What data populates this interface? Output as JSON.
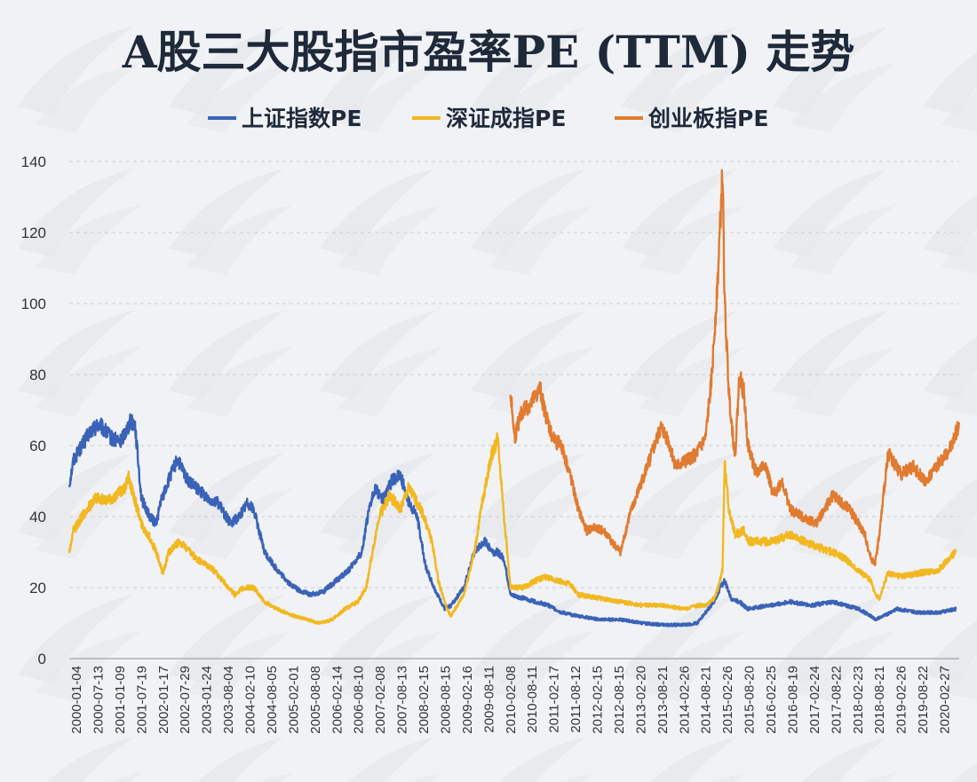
{
  "chart_data": {
    "type": "line",
    "title": "A股三大股指市盈率PE (TTM) 走势",
    "xlabel": "",
    "ylabel": "",
    "ylim": [
      0,
      140
    ],
    "y_ticks": [
      0,
      20,
      40,
      60,
      80,
      100,
      120,
      140
    ],
    "grid": true,
    "legend_position": "top",
    "x_tick_labels": [
      "2000-01-04",
      "2000-07-13",
      "2001-01-09",
      "2001-07-19",
      "2002-01-17",
      "2002-07-29",
      "2003-01-24",
      "2003-08-04",
      "2004-02-10",
      "2004-08-05",
      "2005-02-01",
      "2005-08-08",
      "2006-02-14",
      "2006-08-10",
      "2007-02-08",
      "2007-08-13",
      "2008-02-15",
      "2008-08-15",
      "2009-02-16",
      "2009-08-11",
      "2010-02-08",
      "2010-08-11",
      "2011-02-17",
      "2011-08-12",
      "2012-02-15",
      "2012-08-15",
      "2013-02-20",
      "2013-08-21",
      "2014-02-26",
      "2014-08-21",
      "2015-02-26",
      "2015-08-20",
      "2016-02-25",
      "2016-08-19",
      "2017-02-24",
      "2017-08-22",
      "2018-02-23",
      "2018-08-21",
      "2019-02-26",
      "2019-08-22",
      "2020-02-27"
    ],
    "series": [
      {
        "name": "上证指数PE",
        "color": "#3a63b8",
        "x": [
          2000.0,
          2000.1,
          2000.3,
          2000.5,
          2000.7,
          2001.0,
          2001.2,
          2001.45,
          2001.55,
          2001.7,
          2001.9,
          2002.05,
          2002.15,
          2002.4,
          2002.55,
          2002.8,
          2003.0,
          2003.3,
          2003.5,
          2003.8,
          2004.0,
          2004.2,
          2004.35,
          2004.6,
          2004.9,
          2005.2,
          2005.45,
          2005.7,
          2006.0,
          2006.3,
          2006.6,
          2006.9,
          2007.0,
          2007.2,
          2007.4,
          2007.6,
          2007.8,
          2008.0,
          2008.2,
          2008.4,
          2008.6,
          2008.85,
          2009.0,
          2009.3,
          2009.55,
          2009.8,
          2010.0,
          2010.1,
          2010.25,
          2010.4,
          2010.7,
          2011.0,
          2011.3,
          2011.6,
          2012.0,
          2012.5,
          2013.0,
          2013.5,
          2014.0,
          2014.5,
          2014.8,
          2015.0,
          2015.2,
          2015.35,
          2015.45,
          2015.6,
          2015.8,
          2016.0,
          2016.5,
          2017.0,
          2017.5,
          2018.0,
          2018.3,
          2018.6,
          2018.9,
          2019.0,
          2019.2,
          2019.5,
          2020.0,
          2020.5,
          2020.9
        ],
        "y": [
          49,
          56,
          60,
          64,
          66,
          62,
          61,
          67,
          66,
          45,
          40,
          38,
          44,
          52,
          56,
          50,
          48,
          45,
          44,
          38,
          40,
          44,
          42,
          30,
          25,
          21,
          19,
          18,
          19,
          22,
          25,
          30,
          38,
          48,
          45,
          50,
          52,
          44,
          40,
          26,
          20,
          14,
          15,
          20,
          30,
          33,
          30,
          30,
          28,
          18,
          17,
          16,
          15,
          13,
          12,
          11,
          11,
          10,
          9.5,
          9.5,
          10,
          13,
          16,
          20,
          22,
          17,
          16,
          14,
          15,
          16,
          15,
          16,
          15,
          14,
          12,
          11,
          12,
          14,
          13,
          13,
          14
        ]
      },
      {
        "name": "深证成指PE",
        "color": "#f1b820",
        "x": [
          2000.0,
          2000.1,
          2000.3,
          2000.6,
          2001.0,
          2001.3,
          2001.4,
          2001.7,
          2001.9,
          2002.05,
          2002.2,
          2002.35,
          2002.6,
          2003.0,
          2003.4,
          2003.9,
          2004.1,
          2004.35,
          2004.6,
          2004.9,
          2005.3,
          2005.6,
          2005.9,
          2006.2,
          2006.5,
          2006.8,
          2007.0,
          2007.3,
          2007.55,
          2007.8,
          2008.0,
          2008.3,
          2008.55,
          2008.7,
          2008.9,
          2009.0,
          2009.3,
          2009.55,
          2009.75,
          2009.95,
          2010.1,
          2010.15,
          2010.25,
          2010.4,
          2010.7,
          2011.0,
          2011.2,
          2011.5,
          2011.8,
          2012.0,
          2012.5,
          2013.0,
          2013.5,
          2014.0,
          2014.5,
          2014.85,
          2015.0,
          2015.2,
          2015.3,
          2015.4,
          2015.45,
          2015.55,
          2015.7,
          2015.9,
          2016.0,
          2016.3,
          2016.6,
          2017.0,
          2017.5,
          2018.0,
          2018.3,
          2018.6,
          2018.9,
          2019.0,
          2019.1,
          2019.3,
          2019.6,
          2020.0,
          2020.5,
          2020.9
        ],
        "y": [
          30,
          36,
          40,
          45,
          45,
          48,
          51,
          38,
          34,
          30,
          24,
          30,
          33,
          28,
          25,
          18,
          20,
          20,
          16,
          14,
          12,
          11,
          10,
          11,
          14,
          16,
          20,
          40,
          46,
          42,
          48,
          42,
          33,
          22,
          14,
          12,
          18,
          30,
          45,
          57,
          62,
          55,
          40,
          20,
          20,
          22,
          23,
          22,
          21,
          18,
          17,
          16,
          15,
          15,
          14,
          15,
          15,
          17,
          20,
          25,
          55,
          42,
          35,
          36,
          33,
          33,
          33,
          35,
          32,
          30,
          28,
          25,
          22,
          18,
          17,
          24,
          23,
          24,
          25,
          30
        ]
      },
      {
        "name": "创业板指PE",
        "color": "#e07b30",
        "x": [
          2010.4,
          2010.5,
          2010.6,
          2010.7,
          2010.9,
          2011.1,
          2011.2,
          2011.4,
          2011.6,
          2011.8,
          2012.0,
          2012.2,
          2012.4,
          2012.6,
          2012.85,
          2013.0,
          2013.2,
          2013.5,
          2013.8,
          2013.95,
          2014.1,
          2014.3,
          2014.6,
          2014.8,
          2015.0,
          2015.15,
          2015.3,
          2015.4,
          2015.45,
          2015.55,
          2015.65,
          2015.7,
          2015.8,
          2015.9,
          2016.0,
          2016.2,
          2016.4,
          2016.6,
          2016.8,
          2017.0,
          2017.3,
          2017.6,
          2017.8,
          2018.0,
          2018.2,
          2018.4,
          2018.6,
          2018.75,
          2018.9,
          2019.0,
          2019.1,
          2019.3,
          2019.6,
          2019.9,
          2020.2,
          2020.5,
          2020.8,
          2020.98
        ],
        "y": [
          75,
          62,
          67,
          70,
          72,
          76,
          70,
          62,
          60,
          52,
          42,
          36,
          37,
          36,
          32,
          30,
          40,
          50,
          60,
          65,
          62,
          54,
          56,
          58,
          62,
          80,
          110,
          137,
          100,
          75,
          62,
          58,
          80,
          75,
          60,
          52,
          55,
          46,
          50,
          42,
          40,
          38,
          42,
          46,
          44,
          42,
          38,
          35,
          28,
          27,
          35,
          58,
          52,
          54,
          50,
          55,
          60,
          66
        ]
      }
    ]
  }
}
